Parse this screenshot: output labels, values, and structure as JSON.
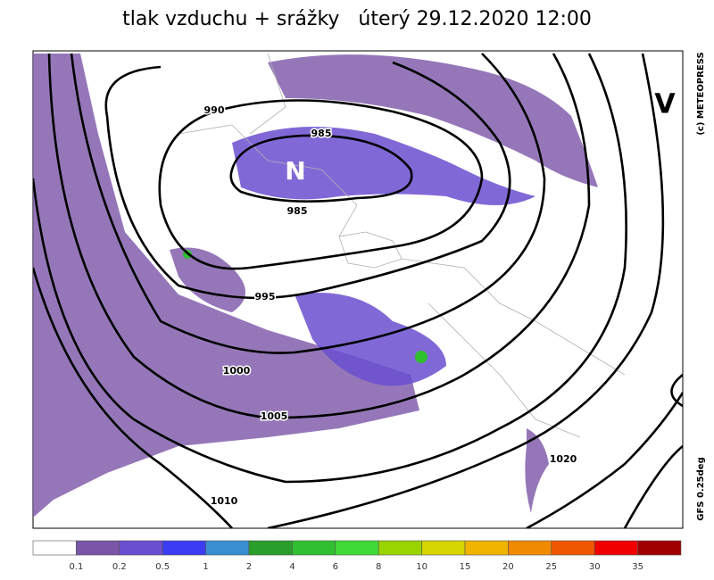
{
  "title": "tlak vzduchu + srážky   úterý 29.12.2020 12:00",
  "credit": "(c) METEOPRESS",
  "model": "GFS 0.25deg",
  "pressure_centers": [
    "N",
    "V"
  ],
  "isobar_labels": [
    "990",
    "985",
    "985",
    "995",
    "1000",
    "1005",
    "1010",
    "1020"
  ],
  "legend": {
    "colors": [
      "#ffffff",
      "#7a55a8",
      "#6a4fd0",
      "#3c3cf2",
      "#3a8ed2",
      "#2a9e2a",
      "#30bf30",
      "#40da38",
      "#99d400",
      "#d6d600",
      "#f0b400",
      "#f08a00",
      "#f05800",
      "#f00000",
      "#a00000"
    ],
    "labels": [
      "0.1",
      "0.2",
      "0.5",
      "1",
      "2",
      "4",
      "6",
      "8",
      "10",
      "15",
      "20",
      "25",
      "30",
      "35"
    ]
  }
}
